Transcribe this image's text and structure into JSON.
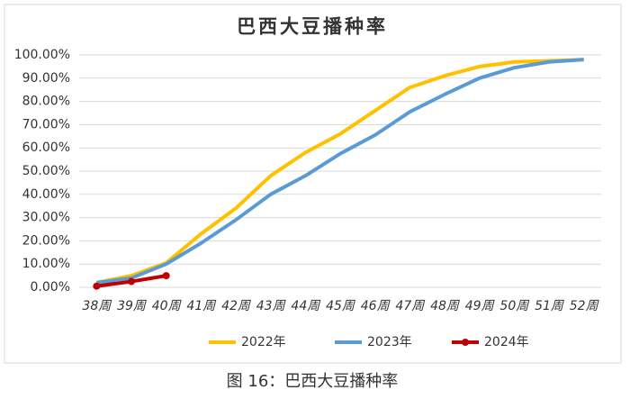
{
  "chart_data": {
    "type": "line",
    "title": "巴西大豆播种率",
    "caption": "图 16：巴西大豆播种率",
    "categories": [
      "38周",
      "39周",
      "40周",
      "41周",
      "42周",
      "43周",
      "44周",
      "45周",
      "46周",
      "47周",
      "48周",
      "49周",
      "50周",
      "51周",
      "52周"
    ],
    "series": [
      {
        "name": "2022年",
        "color": "#ffc000",
        "values": [
          2,
          5,
          10.5,
          23,
          34,
          48,
          58,
          66,
          76,
          86,
          91,
          95,
          97,
          97.5,
          98
        ]
      },
      {
        "name": "2023年",
        "color": "#5b9bd5",
        "values": [
          2,
          4,
          10,
          19,
          29,
          40,
          48,
          57.5,
          65.5,
          75.5,
          83,
          90,
          94.5,
          97,
          98
        ]
      },
      {
        "name": "2024年",
        "color": "#c00000",
        "markers": true,
        "values": [
          0.5,
          2.5,
          5,
          null,
          null,
          null,
          null,
          null,
          null,
          null,
          null,
          null,
          null,
          null,
          null
        ]
      }
    ],
    "ylim": [
      0,
      100
    ],
    "yticks": [
      {
        "value": 0,
        "label": "0.00%"
      },
      {
        "value": 10,
        "label": "10.00%"
      },
      {
        "value": 20,
        "label": "20.00%"
      },
      {
        "value": 30,
        "label": "30.00%"
      },
      {
        "value": 40,
        "label": "40.00%"
      },
      {
        "value": 50,
        "label": "50.00%"
      },
      {
        "value": 60,
        "label": "60.00%"
      },
      {
        "value": 70,
        "label": "70.00%"
      },
      {
        "value": 80,
        "label": "80.00%"
      },
      {
        "value": 90,
        "label": "90.00%"
      },
      {
        "value": 100,
        "label": "100.00%"
      }
    ],
    "grid": true,
    "legend": "bottom"
  }
}
